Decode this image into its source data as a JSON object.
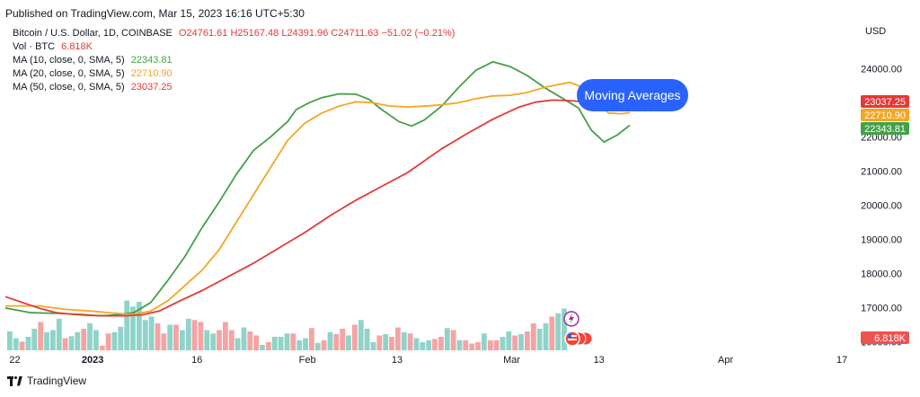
{
  "header": {
    "published": "Published on TradingView.com, Mar 15, 2023 16:16 UTC+5:30"
  },
  "currency": "USD",
  "legend": {
    "symbol": "Bitcoin / U.S. Dollar, 1D, COINBASE",
    "ohlc": "O24761.61 H25167.48 L24391.96 C24711.63 −51.02 (−0.21%)",
    "vol_label": "Vol · BTC",
    "vol_value": "6.818K",
    "ma10_label": "MA (10, close, 0, SMA, 5)",
    "ma10_value": "22343.81",
    "ma20_label": "MA (20, close, 0, SMA, 5)",
    "ma20_value": "22710.90",
    "ma50_label": "MA (50, close, 0, SMA, 5)",
    "ma50_value": "23037.25"
  },
  "annotation": "Moving Averages",
  "footer": {
    "brand": "TradingView"
  },
  "colors": {
    "ma10": "#43a047",
    "ma20": "#f5a623",
    "ma50": "#e53935",
    "vol_up": "#8fd3c9",
    "vol_down": "#f5a3a3",
    "callout": "#2962ff"
  },
  "chart_data": {
    "type": "line",
    "y_ticks": [
      "24000.00",
      "23000.00",
      "22000.00",
      "21000.00",
      "20000.00",
      "19000.00",
      "18000.00",
      "17000.00",
      "16000.00"
    ],
    "ylim": [
      15750,
      24800
    ],
    "x_ticks": [
      "22",
      "2023",
      "16",
      "Feb",
      "13",
      "Mar",
      "13",
      "Apr",
      "17"
    ],
    "xlim": [
      0,
      100
    ],
    "x_tick_positions": [
      1.1,
      10.2,
      22.4,
      35.3,
      45.8,
      59.2,
      69.4,
      84.2,
      97.8
    ],
    "series": [
      {
        "name": "MA (10, close, 0, SMA, 5)",
        "color": "#43a047",
        "last_label": "22343.81",
        "points": [
          [
            0,
            16990
          ],
          [
            3,
            16850
          ],
          [
            6,
            16830
          ],
          [
            9,
            16800
          ],
          [
            11,
            16760
          ],
          [
            13,
            16790
          ],
          [
            15,
            16850
          ],
          [
            17,
            17150
          ],
          [
            19,
            17800
          ],
          [
            21,
            18500
          ],
          [
            23,
            19350
          ],
          [
            25,
            20100
          ],
          [
            27,
            20900
          ],
          [
            29,
            21600
          ],
          [
            31,
            22000
          ],
          [
            33,
            22450
          ],
          [
            34,
            22800
          ],
          [
            35.5,
            23000
          ],
          [
            37,
            23150
          ],
          [
            39,
            23260
          ],
          [
            41,
            23250
          ],
          [
            42.5,
            23100
          ],
          [
            44,
            22800
          ],
          [
            46,
            22450
          ],
          [
            47.5,
            22320
          ],
          [
            49,
            22500
          ],
          [
            51,
            22900
          ],
          [
            53,
            23450
          ],
          [
            55,
            23950
          ],
          [
            57,
            24200
          ],
          [
            59,
            24060
          ],
          [
            61,
            23800
          ],
          [
            63,
            23450
          ],
          [
            65,
            23150
          ],
          [
            67,
            22850
          ],
          [
            68.5,
            22200
          ],
          [
            70,
            21850
          ],
          [
            71.5,
            22050
          ],
          [
            73,
            22343.81
          ]
        ]
      },
      {
        "name": "MA (20, close, 0, SMA, 5)",
        "color": "#f5a623",
        "last_label": "22710.90",
        "points": [
          [
            0,
            17050
          ],
          [
            4,
            17050
          ],
          [
            7,
            16950
          ],
          [
            10,
            16900
          ],
          [
            13,
            16830
          ],
          [
            15,
            16800
          ],
          [
            17,
            16900
          ],
          [
            19,
            17200
          ],
          [
            21,
            17650
          ],
          [
            23,
            18100
          ],
          [
            25,
            18700
          ],
          [
            27,
            19500
          ],
          [
            29,
            20300
          ],
          [
            31,
            21100
          ],
          [
            33,
            21900
          ],
          [
            35,
            22400
          ],
          [
            37,
            22700
          ],
          [
            39,
            22900
          ],
          [
            41,
            23030
          ],
          [
            43,
            23000
          ],
          [
            45,
            22900
          ],
          [
            47,
            22880
          ],
          [
            49,
            22900
          ],
          [
            51,
            22940
          ],
          [
            53,
            23000
          ],
          [
            55,
            23120
          ],
          [
            57,
            23200
          ],
          [
            59,
            23220
          ],
          [
            61,
            23300
          ],
          [
            63,
            23450
          ],
          [
            65,
            23550
          ],
          [
            66,
            23600
          ],
          [
            67.5,
            23450
          ],
          [
            69,
            23050
          ],
          [
            70.5,
            22700
          ],
          [
            72,
            22680
          ],
          [
            73,
            22710.9
          ]
        ]
      },
      {
        "name": "MA (50, close, 0, SMA, 5)",
        "color": "#e53935",
        "last_label": "23037.25",
        "points": [
          [
            0,
            17320
          ],
          [
            2,
            17150
          ],
          [
            4,
            16980
          ],
          [
            6,
            16850
          ],
          [
            8,
            16800
          ],
          [
            10,
            16770
          ],
          [
            12,
            16760
          ],
          [
            14,
            16760
          ],
          [
            16,
            16790
          ],
          [
            18,
            16900
          ],
          [
            20,
            17150
          ],
          [
            23,
            17500
          ],
          [
            26,
            17900
          ],
          [
            29,
            18300
          ],
          [
            32,
            18750
          ],
          [
            35,
            19200
          ],
          [
            38,
            19700
          ],
          [
            41,
            20150
          ],
          [
            44,
            20550
          ],
          [
            47,
            20950
          ],
          [
            49,
            21300
          ],
          [
            51,
            21650
          ],
          [
            54,
            22100
          ],
          [
            57,
            22520
          ],
          [
            60,
            22870
          ],
          [
            62,
            23020
          ],
          [
            64,
            23080
          ],
          [
            66,
            23060
          ],
          [
            68,
            23020
          ],
          [
            70,
            22980
          ],
          [
            73,
            23037.25
          ]
        ]
      }
    ],
    "volume": {
      "axis_label": "6.818K",
      "colors_key": "up = #8fd3c9, down = #f5a3a3",
      "heights": [
        0.28,
        0.18,
        0.13,
        0.2,
        0.32,
        0.42,
        0.27,
        0.3,
        0.47,
        0.18,
        0.21,
        0.27,
        0.32,
        0.4,
        0.3,
        0.07,
        0.25,
        0.27,
        0.35,
        0.74,
        0.65,
        0.72,
        0.45,
        0.5,
        0.4,
        0.25,
        0.38,
        0.38,
        0.3,
        0.47,
        0.45,
        0.42,
        0.3,
        0.25,
        0.3,
        0.42,
        0.3,
        0.18,
        0.34,
        0.28,
        0.22,
        0.08,
        0.12,
        0.2,
        0.2,
        0.25,
        0.25,
        0.15,
        0.18,
        0.33,
        0.11,
        0.15,
        0.27,
        0.24,
        0.32,
        0.22,
        0.38,
        0.45,
        0.32,
        0.12,
        0.22,
        0.24,
        0.2,
        0.34,
        0.27,
        0.25,
        0.18,
        0.12,
        0.15,
        0.17,
        0.2,
        0.33,
        0.3,
        0.15,
        0.15,
        0.1,
        0.12,
        0.25,
        0.15,
        0.15,
        0.2,
        0.28,
        0.22,
        0.24,
        0.28,
        0.4,
        0.32,
        0.4,
        0.5,
        0.55,
        0.62
      ],
      "up": [
        1,
        1,
        0,
        1,
        1,
        0,
        1,
        1,
        1,
        0,
        1,
        1,
        0,
        1,
        1,
        0,
        0,
        1,
        1,
        1,
        1,
        1,
        1,
        1,
        0,
        0,
        1,
        0,
        1,
        1,
        0,
        0,
        1,
        1,
        0,
        0,
        0,
        1,
        1,
        0,
        0,
        1,
        0,
        1,
        1,
        1,
        0,
        1,
        1,
        0,
        1,
        0,
        1,
        0,
        0,
        1,
        0,
        1,
        1,
        1,
        0,
        1,
        0,
        0,
        1,
        0,
        1,
        1,
        1,
        0,
        0,
        1,
        0,
        1,
        0,
        0,
        0,
        1,
        0,
        0,
        1,
        1,
        0,
        1,
        0,
        0,
        1,
        1,
        0,
        1,
        1
      ]
    }
  }
}
